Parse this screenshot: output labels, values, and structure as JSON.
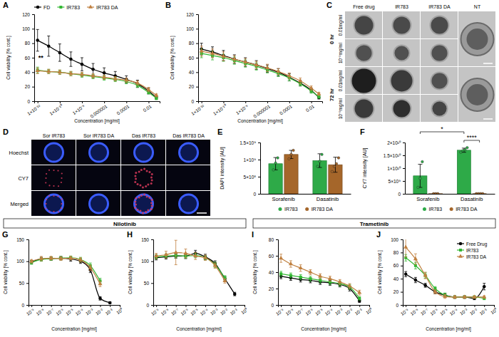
{
  "chart_data": [
    {
      "type": "line",
      "title": "A",
      "log": "x",
      "legend": "top",
      "xlabel": "Concentration [mg/ml]",
      "ylabel": "Cell viability [% cont.]",
      "x": [
        1e-12,
        1e-11,
        1e-10,
        1e-09,
        1e-08,
        1e-07,
        1e-06,
        1e-05,
        0.0001,
        0.001,
        0.01,
        0.05
      ],
      "xlim": [
        5e-13,
        0.1
      ],
      "xticks": [
        {
          "value": 1e-12,
          "label": "1×10⁻¹²"
        },
        {
          "value": 1e-10,
          "label": "1×10⁻¹⁰"
        },
        {
          "value": 1e-08,
          "label": "1×10⁻⁸"
        },
        1e-06,
        0.0001,
        0.01
      ],
      "ylim": [
        0,
        120
      ],
      "yticks": [
        0,
        20,
        40,
        60,
        80,
        100,
        120
      ],
      "series": [
        {
          "name": "FD",
          "color": "#000000",
          "marker": "circle",
          "values": [
            84,
            76,
            67,
            58,
            51,
            44,
            39,
            35,
            30,
            24,
            14,
            5
          ],
          "errors": [
            15,
            14,
            12,
            10,
            9,
            8,
            7,
            6,
            5,
            5,
            4,
            2
          ]
        },
        {
          "name": "IR783",
          "color": "#33b833",
          "marker": "square",
          "values": [
            43,
            41,
            40,
            38,
            36,
            34,
            32,
            30,
            27,
            22,
            12,
            4
          ],
          "errors": [
            4,
            3,
            3,
            3,
            3,
            3,
            3,
            3,
            3,
            3,
            2,
            2
          ]
        },
        {
          "name": "IR783 DA",
          "color": "#c08040",
          "marker": "triangle",
          "values": [
            42,
            41,
            40,
            38,
            37,
            35,
            33,
            31,
            29,
            25,
            16,
            8
          ],
          "errors": [
            4,
            3,
            3,
            3,
            3,
            3,
            3,
            3,
            3,
            3,
            3,
            2
          ]
        }
      ],
      "annotations": [
        {
          "text": "**",
          "x": 2e-12,
          "y": 57
        }
      ]
    },
    {
      "type": "line",
      "title": "B",
      "log": "x",
      "xlabel": "Concentration [mg/ml]",
      "ylabel": "Cell viability [% cont.]",
      "x": [
        1e-12,
        1e-11,
        1e-10,
        1e-09,
        1e-08,
        1e-07,
        1e-06,
        1e-05,
        0.0001,
        0.001,
        0.01,
        0.05
      ],
      "xlim": [
        5e-13,
        0.1
      ],
      "xticks": [
        {
          "value": 1e-12,
          "label": "1×10⁻¹²"
        },
        {
          "value": 1e-10,
          "label": "1×10⁻¹⁰"
        },
        {
          "value": 1e-08,
          "label": "1×10⁻⁸"
        },
        1e-06,
        0.0001,
        0.01
      ],
      "ylim": [
        0,
        120
      ],
      "yticks": [
        0,
        20,
        40,
        60,
        80,
        100,
        120
      ],
      "series": [
        {
          "color": "#000000",
          "marker": "circle",
          "values": [
            72,
            68,
            63,
            58,
            54,
            50,
            45,
            40,
            33,
            25,
            15,
            5
          ],
          "errors": [
            8,
            7,
            7,
            6,
            6,
            6,
            5,
            5,
            5,
            4,
            3,
            2
          ]
        },
        {
          "color": "#33b833",
          "marker": "square",
          "values": [
            66,
            63,
            60,
            56,
            52,
            48,
            43,
            38,
            32,
            24,
            14,
            6
          ],
          "errors": [
            6,
            6,
            5,
            5,
            5,
            5,
            4,
            4,
            4,
            3,
            3,
            2
          ]
        },
        {
          "color": "#c08040",
          "marker": "triangle",
          "values": [
            69,
            66,
            62,
            58,
            54,
            50,
            46,
            41,
            35,
            28,
            18,
            10
          ],
          "errors": [
            7,
            6,
            6,
            5,
            5,
            5,
            5,
            4,
            4,
            4,
            3,
            2
          ]
        }
      ]
    },
    {
      "type": "bar",
      "title": "E",
      "legend": "bottom",
      "ylabel": "DAPI intensity [AU]",
      "categories": [
        "Sorafenib",
        "Dasatinib"
      ],
      "ylim": [
        0,
        1500000000
      ],
      "yticks": [
        0,
        {
          "value": 500000000,
          "label": "5×10⁸"
        },
        {
          "value": 1000000000,
          "label": "1×10⁹"
        },
        {
          "value": 1500000000,
          "label": "1.5×10⁹"
        }
      ],
      "series": [
        {
          "name": "IR783",
          "color": "#2eaa48",
          "values": [
            880000000,
            970000000
          ],
          "errors": [
            180000000,
            200000000
          ],
          "replicates": [
            [
              700000000,
              900000000,
              1050000000
            ],
            [
              800000000,
              950000000,
              1150000000
            ]
          ]
        },
        {
          "name": "IR783 DA",
          "color": "#a5662a",
          "values": [
            1150000000,
            850000000
          ],
          "errors": [
            120000000,
            220000000
          ],
          "replicates": [
            [
              1020000000,
              1150000000,
              1270000000
            ],
            [
              650000000,
              800000000,
              880000000,
              1050000000
            ]
          ]
        }
      ]
    },
    {
      "type": "bar",
      "title": "F",
      "legend": "bottom",
      "ylabel": "CY7 intensity [AU]",
      "categories": [
        "Sorafenib",
        "Dasatinib"
      ],
      "ylim": [
        0,
        20000000000
      ],
      "yticks": [
        0,
        {
          "value": 5000000000,
          "label": "5×10⁹"
        },
        {
          "value": 10000000000,
          "label": "1×10¹⁰"
        },
        {
          "value": 15000000000,
          "label": "1.5×10¹⁰"
        },
        {
          "value": 20000000000,
          "label": "2×10¹⁰"
        }
      ],
      "series": [
        {
          "name": "IR783",
          "color": "#2eaa48",
          "values": [
            7000000000,
            17000000000
          ],
          "errors": [
            4500000000,
            800000000
          ],
          "replicates": [
            [
              2500000000,
              6000000000,
              12500000000
            ],
            [
              16200000000,
              16800000000,
              17200000000,
              18000000000
            ]
          ]
        },
        {
          "name": "IR783 DA",
          "color": "#a5662a",
          "values": [
            50000000,
            50000000
          ],
          "errors": [
            20000000,
            20000000
          ],
          "replicates": [
            [
              40000000,
              50000000,
              60000000
            ],
            [
              40000000,
              50000000,
              60000000,
              50000000
            ]
          ]
        }
      ],
      "annotations": [
        {
          "text": "*",
          "categories": [
            "Sorafenib",
            "Dasatinib"
          ],
          "series": [
            "IR783",
            "IR783"
          ]
        },
        {
          "text": "****",
          "categories": [
            "Dasatinib",
            "Dasatinib"
          ],
          "series": [
            "IR783",
            "IR783 DA"
          ]
        }
      ]
    },
    {
      "type": "line",
      "title": "G",
      "log": "x",
      "xlabel": "Concentration [mg/ml]",
      "ylabel": "Cell viability [% cont.]",
      "x": [
        1e-09,
        1e-08,
        1e-07,
        1e-06,
        1e-05,
        0.0001,
        0.001,
        0.01,
        0.1
      ],
      "xlim": [
        5e-10,
        1
      ],
      "xticks": [
        {
          "value": 1e-09,
          "label": "10⁻⁹"
        },
        {
          "value": 1e-08,
          "label": "10⁻⁸"
        },
        {
          "value": 1e-07,
          "label": "10⁻⁷"
        },
        {
          "value": 1e-06,
          "label": "10⁻⁶"
        },
        {
          "value": 1e-05,
          "label": "10⁻⁵"
        },
        {
          "value": 0.0001,
          "label": "10⁻⁴"
        },
        {
          "value": 0.001,
          "label": "10⁻³"
        },
        {
          "value": 0.01,
          "label": "10⁻²"
        },
        {
          "value": 0.1,
          "label": "10⁻¹"
        },
        {
          "value": 1,
          "label": "10⁰"
        }
      ],
      "ylim": [
        0,
        150
      ],
      "yticks": [
        0,
        50,
        100,
        150
      ],
      "series": [
        {
          "color": "#000000",
          "marker": "circle",
          "values": [
            98,
            105,
            106,
            107,
            105,
            100,
            80,
            15,
            5
          ],
          "errors": [
            4,
            4,
            4,
            4,
            5,
            5,
            6,
            4,
            2
          ]
        },
        {
          "color": "#33b833",
          "marker": "square",
          "values": [
            97,
            104,
            106,
            107,
            108,
            104,
            90,
            55,
            null
          ],
          "errors": [
            4,
            4,
            4,
            4,
            4,
            5,
            6,
            6,
            null
          ]
        },
        {
          "color": "#c08040",
          "marker": "triangle",
          "values": [
            100,
            106,
            107,
            106,
            107,
            103,
            85,
            48,
            null
          ],
          "errors": [
            4,
            5,
            4,
            4,
            4,
            5,
            6,
            6,
            null
          ]
        }
      ]
    },
    {
      "type": "line",
      "title": "H",
      "log": "x",
      "xlabel": "Concentration [mg/ml]",
      "ylabel": "Cell viability [% cont.]",
      "x": [
        1e-09,
        1e-08,
        1e-07,
        1e-06,
        1e-05,
        0.0001,
        0.001,
        0.01,
        0.1
      ],
      "xlim": [
        5e-10,
        1
      ],
      "xticks": [
        {
          "value": 1e-09,
          "label": "10⁻⁹"
        },
        {
          "value": 1e-08,
          "label": "10⁻⁸"
        },
        {
          "value": 1e-07,
          "label": "10⁻⁷"
        },
        {
          "value": 1e-06,
          "label": "10⁻⁶"
        },
        {
          "value": 1e-05,
          "label": "10⁻⁵"
        },
        {
          "value": 0.0001,
          "label": "10⁻⁴"
        },
        {
          "value": 0.001,
          "label": "10⁻³"
        },
        {
          "value": 0.01,
          "label": "10⁻²"
        },
        {
          "value": 0.1,
          "label": "10⁻¹"
        },
        {
          "value": 1,
          "label": "10⁰"
        }
      ],
      "ylim": [
        0,
        150
      ],
      "yticks": [
        0,
        50,
        100,
        150
      ],
      "series": [
        {
          "color": "#000000",
          "marker": "circle",
          "values": [
            108,
            110,
            112,
            112,
            118,
            110,
            95,
            60,
            25
          ],
          "errors": [
            5,
            5,
            5,
            6,
            7,
            6,
            6,
            5,
            4
          ]
        },
        {
          "color": "#33b833",
          "marker": "square",
          "values": [
            110,
            112,
            113,
            112,
            113,
            108,
            92,
            62,
            null
          ],
          "errors": [
            5,
            5,
            5,
            5,
            5,
            5,
            6,
            5,
            null
          ]
        },
        {
          "color": "#c08040",
          "marker": "triangle",
          "values": [
            112,
            115,
            120,
            118,
            112,
            108,
            90,
            55,
            null
          ],
          "errors": [
            6,
            8,
            28,
            10,
            8,
            6,
            6,
            5,
            null
          ]
        }
      ]
    },
    {
      "type": "line",
      "title": "I",
      "log": "x",
      "xlabel": "Concentration [mg/ml]",
      "ylabel": "Cell viability [% cont.]",
      "x": [
        1e-09,
        1e-08,
        1e-07,
        1e-06,
        1e-05,
        0.0001,
        0.001,
        0.01,
        0.1
      ],
      "xlim": [
        5e-10,
        1
      ],
      "xticks": [
        {
          "value": 1e-09,
          "label": "10⁻⁹"
        },
        {
          "value": 1e-08,
          "label": "10⁻⁸"
        },
        {
          "value": 1e-07,
          "label": "10⁻⁷"
        },
        {
          "value": 1e-06,
          "label": "10⁻⁶"
        },
        {
          "value": 1e-05,
          "label": "10⁻⁵"
        },
        {
          "value": 0.0001,
          "label": "10⁻⁴"
        },
        {
          "value": 0.001,
          "label": "10⁻³"
        },
        {
          "value": 0.01,
          "label": "10⁻²"
        },
        {
          "value": 0.1,
          "label": "10⁻¹"
        },
        {
          "value": 1,
          "label": "10⁰"
        }
      ],
      "ylim": [
        0,
        80
      ],
      "yticks": [
        0,
        20,
        40,
        60,
        80
      ],
      "series": [
        {
          "color": "#000000",
          "marker": "circle",
          "values": [
            35,
            33,
            31,
            30,
            28,
            27,
            25,
            20,
            5
          ],
          "errors": [
            3,
            3,
            3,
            3,
            3,
            3,
            3,
            3,
            2
          ]
        },
        {
          "color": "#33b833",
          "marker": "square",
          "values": [
            38,
            36,
            34,
            32,
            30,
            28,
            26,
            22,
            8
          ],
          "errors": [
            3,
            3,
            3,
            3,
            3,
            3,
            3,
            3,
            2
          ]
        },
        {
          "color": "#c08040",
          "marker": "triangle",
          "values": [
            57,
            50,
            45,
            40,
            35,
            32,
            28,
            23,
            15
          ],
          "errors": [
            5,
            4,
            4,
            3,
            3,
            3,
            3,
            3,
            3
          ]
        }
      ]
    },
    {
      "type": "line",
      "title": "J",
      "log": "x",
      "legend": "top right",
      "xlabel": "Concentration [mg/ml]",
      "ylabel": "Cell viability [% cont.]",
      "x": [
        1e-09,
        1e-08,
        1e-07,
        1e-06,
        1e-05,
        0.0001,
        0.001,
        0.01,
        0.1
      ],
      "xlim": [
        5e-10,
        1
      ],
      "xticks": [
        {
          "value": 1e-09,
          "label": "10⁻⁹"
        },
        {
          "value": 1e-08,
          "label": "10⁻⁸"
        },
        {
          "value": 1e-07,
          "label": "10⁻⁷"
        },
        {
          "value": 1e-06,
          "label": "10⁻⁶"
        },
        {
          "value": 1e-05,
          "label": "10⁻⁵"
        },
        {
          "value": 0.0001,
          "label": "10⁻⁴"
        },
        {
          "value": 0.001,
          "label": "10⁻³"
        },
        {
          "value": 0.01,
          "label": "10⁻²"
        },
        {
          "value": 0.1,
          "label": "10⁻¹"
        },
        {
          "value": 1,
          "label": "10⁰"
        }
      ],
      "ylim": [
        0,
        100
      ],
      "yticks": [
        0,
        20,
        40,
        60,
        80,
        100
      ],
      "series": [
        {
          "name": "Free Drug",
          "color": "#000000",
          "marker": "circle",
          "values": [
            47,
            38,
            30,
            20,
            15,
            12,
            12,
            10,
            28
          ],
          "errors": [
            4,
            4,
            3,
            3,
            3,
            2,
            2,
            2,
            5
          ]
        },
        {
          "name": "IR783",
          "color": "#33b833",
          "marker": "square",
          "values": [
            72,
            60,
            45,
            25,
            15,
            12,
            12,
            12,
            10
          ],
          "errors": [
            5,
            5,
            4,
            3,
            3,
            2,
            2,
            2,
            2
          ]
        },
        {
          "name": "IR783 DA",
          "color": "#c08040",
          "marker": "triangle",
          "values": [
            88,
            70,
            45,
            20,
            13,
            12,
            12,
            12,
            12
          ],
          "errors": [
            15,
            8,
            5,
            3,
            3,
            2,
            2,
            2,
            2
          ]
        }
      ]
    }
  ],
  "panel_c": {
    "title": "C",
    "columns": [
      "Free drug",
      "IR783",
      "IR783 DA",
      "NT"
    ],
    "rows": [
      {
        "label": "0 hr",
        "concentrations": [
          "0.01mg/ml",
          "10⁻⁹mg/ml"
        ]
      },
      {
        "label": "72 hr",
        "concentrations": [
          "0.01mg/ml",
          "10⁻⁹mg/ml"
        ]
      }
    ]
  },
  "panel_d": {
    "title": "D",
    "columns": [
      "Sor IR783",
      "Sor IR783 DA",
      "Das IR783",
      "Das IR783 DA"
    ],
    "rows": [
      "Hoechst",
      "CY7",
      "Merged"
    ]
  },
  "groups": [
    {
      "label": "Nilotinib"
    },
    {
      "label": "Trametinib"
    }
  ]
}
